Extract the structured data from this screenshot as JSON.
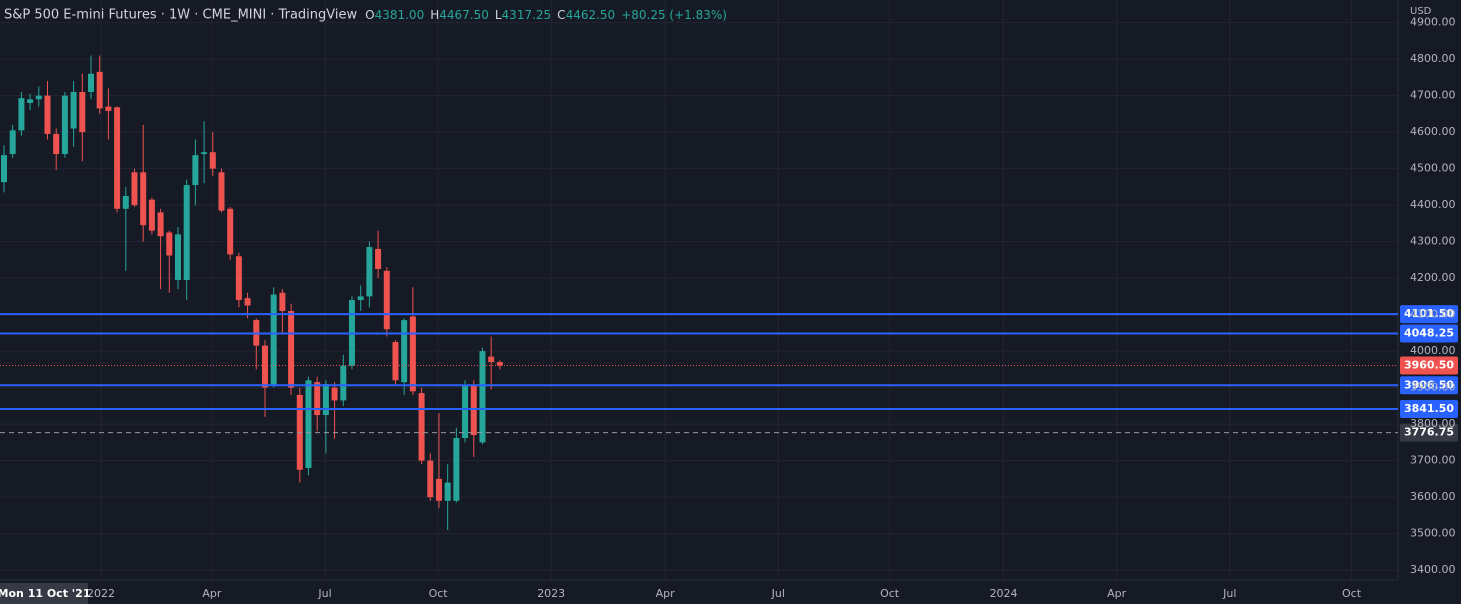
{
  "chart_data": {
    "type": "candlestick",
    "title": "S&P 500 E-mini Futures · 1W · CME_MINI · TradingView",
    "ohlc_legend": [
      {
        "key": "O",
        "value": "4381.00"
      },
      {
        "key": "H",
        "value": "4467.50"
      },
      {
        "key": "L",
        "value": "4317.25"
      },
      {
        "key": "C",
        "value": "4462.50"
      }
    ],
    "change": "+80.25 (+1.83%)",
    "currency": "USD",
    "crosshair_label": "Mon 11 Oct '21",
    "up_color": "#26a69a",
    "down_color": "#ef5350",
    "categories": [
      null,
      null,
      null,
      null,
      null,
      null,
      null,
      null,
      null,
      null,
      null,
      null,
      null,
      null,
      null,
      null,
      null,
      null,
      null,
      null,
      null,
      null,
      null,
      null,
      null,
      null,
      null,
      null,
      null,
      null,
      null,
      null,
      null,
      null,
      null,
      null,
      null,
      null,
      null,
      null,
      null,
      null,
      null,
      null,
      null,
      null,
      null,
      null,
      null,
      null,
      null,
      null,
      null,
      null,
      null,
      null,
      null,
      null
    ],
    "open": [
      4463,
      4540,
      4605,
      4680,
      4690,
      4700,
      4595,
      4540,
      4610,
      4710,
      4710,
      4765,
      4670,
      4668,
      4390,
      4490,
      4490,
      4415,
      4380,
      4325,
      4195,
      4195,
      4455,
      4540,
      4545,
      4490,
      4390,
      4260,
      4145,
      4085,
      4015,
      3905,
      4160,
      4110,
      3880,
      3680,
      3915,
      3825,
      3900,
      3865,
      3960,
      4140,
      4150,
      4280,
      4220,
      4025,
      3915,
      4095,
      3885,
      3700,
      3650,
      3590,
      3590,
      3762,
      3905,
      3750,
      3985,
      3970
    ],
    "high": [
      4564,
      4620,
      4710,
      4705,
      4725,
      4740,
      4610,
      4710,
      4740,
      4760,
      4810,
      4810,
      4720,
      4670,
      4450,
      4500,
      4620,
      4420,
      4390,
      4330,
      4340,
      4470,
      4580,
      4630,
      4600,
      4500,
      4395,
      4270,
      4160,
      4090,
      4030,
      4175,
      4170,
      4130,
      3900,
      3930,
      3930,
      3920,
      3915,
      3990,
      4150,
      4180,
      4300,
      4330,
      4230,
      4030,
      4090,
      4175,
      3900,
      3720,
      3830,
      3690,
      3790,
      3920,
      3920,
      4010,
      4040,
      3975
    ],
    "low": [
      4435,
      4530,
      4590,
      4660,
      4670,
      4580,
      4496,
      4530,
      4560,
      4520,
      4690,
      4650,
      4580,
      4380,
      4220,
      4395,
      4300,
      4320,
      4170,
      4160,
      4170,
      4140,
      4400,
      4460,
      4480,
      4380,
      4250,
      4120,
      4090,
      3950,
      3820,
      3900,
      4050,
      3880,
      3640,
      3660,
      3780,
      3720,
      3760,
      3850,
      3950,
      4110,
      4120,
      4200,
      4040,
      3910,
      3880,
      3880,
      3690,
      3590,
      3570,
      3510,
      3585,
      3750,
      3710,
      3745,
      3895,
      3950
    ],
    "close": [
      4537,
      4605,
      4693,
      4690,
      4700,
      4595,
      4540,
      4700,
      4710,
      4600,
      4760,
      4665,
      4658,
      4390,
      4425,
      4400,
      4345,
      4330,
      4315,
      4262,
      4320,
      4455,
      4537,
      4545,
      4500,
      4385,
      4265,
      4140,
      4125,
      4015,
      3900,
      4155,
      4110,
      3900,
      3675,
      3920,
      3825,
      3910,
      3865,
      3960,
      4140,
      4150,
      4285,
      4225,
      4060,
      3920,
      4085,
      3890,
      3700,
      3600,
      3590,
      3640,
      3762,
      3905,
      3770,
      4000,
      3970,
      3960.5
    ],
    "ylim": [
      3373,
      4962
    ],
    "yticks": [
      {
        "value": 3400,
        "label": "3400.00"
      },
      {
        "value": 3500,
        "label": "3500.00"
      },
      {
        "value": 3600,
        "label": "3600.00"
      },
      {
        "value": 3700,
        "label": "3700.00"
      },
      {
        "value": 3800,
        "label": "3800.00"
      },
      {
        "value": 3900,
        "label": "3900.00"
      },
      {
        "value": 4000,
        "label": "4000.00"
      },
      {
        "value": 4100,
        "label": "4100.00"
      },
      {
        "value": 4200,
        "label": "4200.00"
      },
      {
        "value": 4300,
        "label": "4300.00"
      },
      {
        "value": 4400,
        "label": "4400.00"
      },
      {
        "value": 4500,
        "label": "4500.00"
      },
      {
        "value": 4600,
        "label": "4600.00"
      },
      {
        "value": 4700,
        "label": "4700.00"
      },
      {
        "value": 4800,
        "label": "4800.00"
      },
      {
        "value": 4900,
        "label": "4900.00"
      }
    ],
    "xlim": [
      -0.46,
      160.24
    ],
    "xticks": [
      {
        "value": 11.15,
        "label": "2022"
      },
      {
        "value": 23.9,
        "label": "Apr"
      },
      {
        "value": 36.9,
        "label": "Jul"
      },
      {
        "value": 49.9,
        "label": "Oct"
      },
      {
        "value": 62.9,
        "label": "2023"
      },
      {
        "value": 76.0,
        "label": "Apr"
      },
      {
        "value": 89.0,
        "label": "Jul"
      },
      {
        "value": 101.8,
        "label": "Oct"
      },
      {
        "value": 114.9,
        "label": "2024"
      },
      {
        "value": 127.9,
        "label": "Apr"
      },
      {
        "value": 140.9,
        "label": "Jul"
      },
      {
        "value": 154.9,
        "label": "Oct"
      }
    ],
    "grid": true,
    "price_lines": [
      {
        "value": 4101.5,
        "label": "4101.50",
        "color": "#2962ff",
        "style": "solid"
      },
      {
        "value": 4048.25,
        "label": "4048.25",
        "color": "#2962ff",
        "style": "solid"
      },
      {
        "value": 3960.5,
        "label": "3960.50",
        "color": "#ef5350",
        "style": "dotted"
      },
      {
        "value": 3906.5,
        "label": "3906.50",
        "color": "#2962ff",
        "style": "solid"
      },
      {
        "value": 3841.5,
        "label": "3841.50",
        "color": "#2962ff",
        "style": "solid"
      },
      {
        "value": 3776.75,
        "label": "3776.75",
        "color": "#9598a1",
        "style": "dashed"
      }
    ]
  }
}
